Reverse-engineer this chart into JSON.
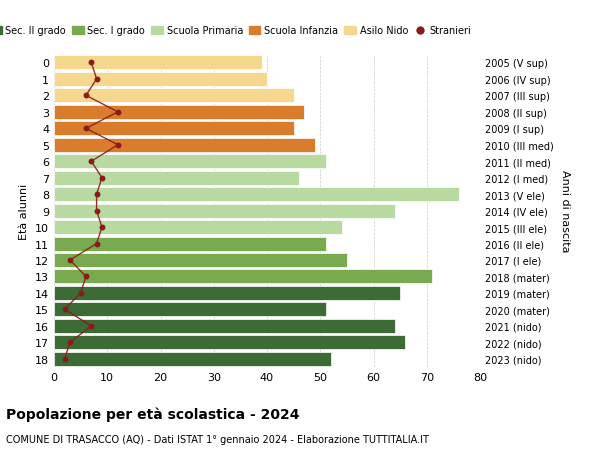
{
  "ages": [
    18,
    17,
    16,
    15,
    14,
    13,
    12,
    11,
    10,
    9,
    8,
    7,
    6,
    5,
    4,
    3,
    2,
    1,
    0
  ],
  "bar_values": [
    52,
    66,
    64,
    51,
    65,
    71,
    55,
    51,
    54,
    64,
    76,
    46,
    51,
    49,
    45,
    47,
    45,
    40,
    39
  ],
  "stranieri_values": [
    2,
    3,
    7,
    2,
    5,
    6,
    3,
    8,
    9,
    8,
    8,
    9,
    7,
    12,
    6,
    12,
    6,
    8,
    7
  ],
  "right_labels": [
    "2005 (V sup)",
    "2006 (IV sup)",
    "2007 (III sup)",
    "2008 (II sup)",
    "2009 (I sup)",
    "2010 (III med)",
    "2011 (II med)",
    "2012 (I med)",
    "2013 (V ele)",
    "2014 (IV ele)",
    "2015 (III ele)",
    "2016 (II ele)",
    "2017 (I ele)",
    "2018 (mater)",
    "2019 (mater)",
    "2020 (mater)",
    "2021 (nido)",
    "2022 (nido)",
    "2023 (nido)"
  ],
  "bar_colors": [
    "#3d6b35",
    "#3d6b35",
    "#3d6b35",
    "#3d6b35",
    "#3d6b35",
    "#7aaa50",
    "#7aaa50",
    "#7aaa50",
    "#b8d9a0",
    "#b8d9a0",
    "#b8d9a0",
    "#b8d9a0",
    "#b8d9a0",
    "#d97c2b",
    "#d97c2b",
    "#d97c2b",
    "#f5d78e",
    "#f5d78e",
    "#f5d78e"
  ],
  "legend_labels": [
    "Sec. II grado",
    "Sec. I grado",
    "Scuola Primaria",
    "Scuola Infanzia",
    "Asilo Nido",
    "Stranieri"
  ],
  "legend_colors": [
    "#3d6b35",
    "#7aaa50",
    "#b8d9a0",
    "#d97c2b",
    "#f5d78e",
    "#8b1a1a"
  ],
  "title": "Popolazione per età scolastica - 2024",
  "subtitle": "COMUNE DI TRASACCO (AQ) - Dati ISTAT 1° gennaio 2024 - Elaborazione TUTTITALIA.IT",
  "ylabel_left": "Età alunni",
  "ylabel_right": "Anni di nascita",
  "xlim": [
    0,
    80
  ],
  "xticks": [
    0,
    10,
    20,
    30,
    40,
    50,
    60,
    70,
    80
  ],
  "bg_color": "#ffffff",
  "grid_color": "#cccccc",
  "stranieri_color": "#8b1a1a"
}
